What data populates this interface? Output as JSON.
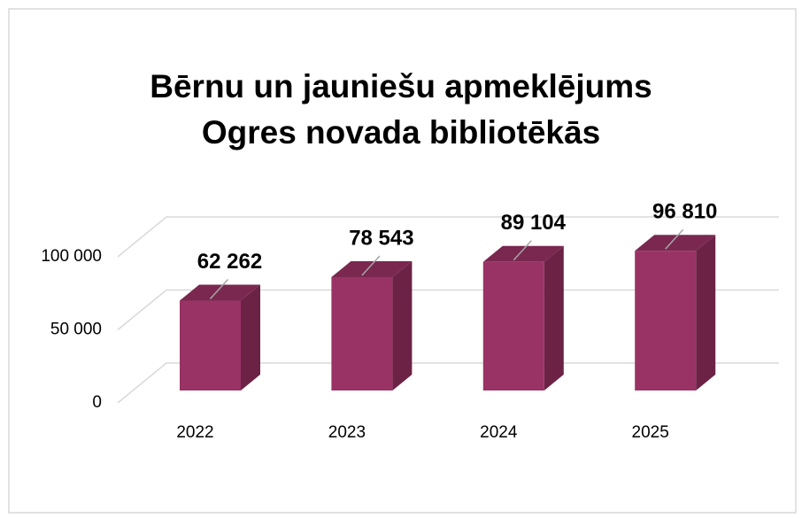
{
  "chart_data": {
    "type": "bar3d",
    "title": "Bērnu un jauniešu apmeklējums Ogres novada bibliotēkās",
    "categories": [
      "2022",
      "2023",
      "2024",
      "2025"
    ],
    "values": [
      62262,
      78543,
      89104,
      96810
    ],
    "value_labels": [
      "62 262",
      "78 543",
      "89 104",
      "96 810"
    ],
    "color": "#993366",
    "ylim": [
      0,
      100000
    ],
    "yticks": [
      0,
      {
        "value": 50000,
        "label": "50 000"
      },
      {
        "value": 100000,
        "label": "100 000"
      }
    ],
    "grid": true
  }
}
